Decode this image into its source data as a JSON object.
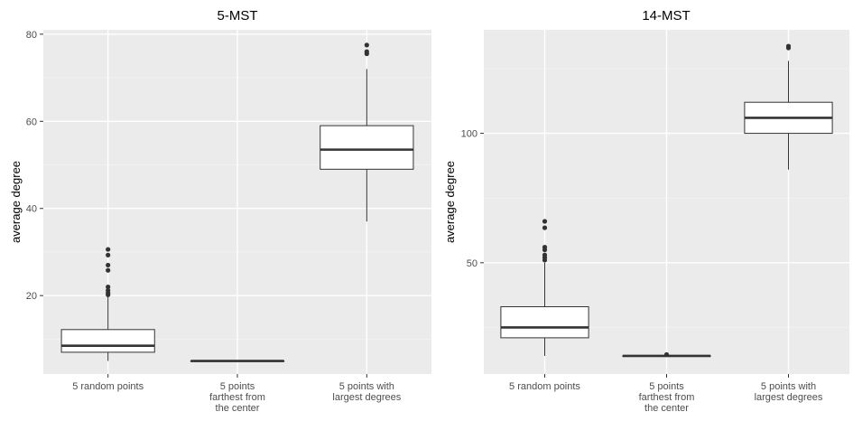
{
  "chart_data": [
    {
      "type": "box",
      "title": "5-MST",
      "ylabel": "average degree",
      "xlabel": "",
      "ylim": [
        2,
        81
      ],
      "yticks": [
        20,
        40,
        60,
        80
      ],
      "grid": true,
      "categories": [
        "5 random points",
        "5 points farthest from the center",
        "5 points with largest degrees"
      ],
      "category_label_lines": [
        [
          "5 random points"
        ],
        [
          "5 points",
          "farthest from",
          "the center"
        ],
        [
          "5 points with",
          "largest degrees"
        ]
      ],
      "boxes": [
        {
          "whisker_low": 5.0,
          "q1": 7.0,
          "median": 8.5,
          "q3": 12.2,
          "whisker_high": 19.8,
          "outliers": [
            20.2,
            20.6,
            21.2,
            22.0,
            25.8,
            27.0,
            29.3,
            30.6
          ]
        },
        {
          "whisker_low": 5.0,
          "q1": 5.0,
          "median": 5.0,
          "q3": 5.0,
          "whisker_high": 5.0,
          "outliers": []
        },
        {
          "whisker_low": 37.0,
          "q1": 49.0,
          "median": 53.5,
          "q3": 59.0,
          "whisker_high": 72.0,
          "outliers": [
            75.5,
            76.0,
            77.5
          ]
        }
      ]
    },
    {
      "type": "box",
      "title": "14-MST",
      "ylabel": "average degree",
      "xlabel": "",
      "ylim": [
        7,
        140
      ],
      "yticks": [
        50,
        100
      ],
      "grid": true,
      "categories": [
        "5 random points",
        "5 points farthest from the center",
        "5 points with largest degrees"
      ],
      "category_label_lines": [
        [
          "5 random points"
        ],
        [
          "5 points",
          "farthest from",
          "the center"
        ],
        [
          "5 points with",
          "largest degrees"
        ]
      ],
      "boxes": [
        {
          "whisker_low": 14.0,
          "q1": 21.0,
          "median": 25.0,
          "q3": 33.0,
          "whisker_high": 50.0,
          "outliers": [
            51.0,
            52.0,
            53.0,
            55.0,
            56.0,
            63.5,
            66.0
          ]
        },
        {
          "whisker_low": 14.0,
          "q1": 14.0,
          "median": 14.0,
          "q3": 14.0,
          "whisker_high": 14.0,
          "outliers": [
            14.5
          ]
        },
        {
          "whisker_low": 86.0,
          "q1": 100.0,
          "median": 106.0,
          "q3": 112.0,
          "whisker_high": 128.0,
          "outliers": [
            133.0,
            133.7
          ]
        }
      ]
    }
  ]
}
